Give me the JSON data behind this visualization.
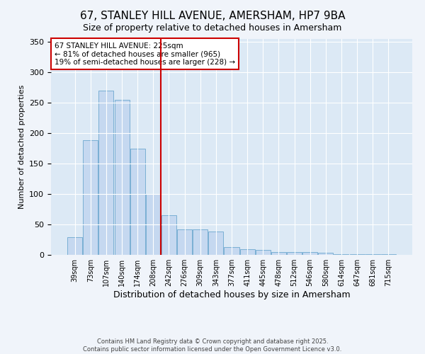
{
  "title": "67, STANLEY HILL AVENUE, AMERSHAM, HP7 9BA",
  "subtitle": "Size of property relative to detached houses in Amersham",
  "xlabel": "Distribution of detached houses by size in Amersham",
  "ylabel": "Number of detached properties",
  "bar_labels": [
    "39sqm",
    "73sqm",
    "107sqm",
    "140sqm",
    "174sqm",
    "208sqm",
    "242sqm",
    "276sqm",
    "309sqm",
    "343sqm",
    "377sqm",
    "411sqm",
    "445sqm",
    "478sqm",
    "512sqm",
    "546sqm",
    "580sqm",
    "614sqm",
    "647sqm",
    "681sqm",
    "715sqm"
  ],
  "bar_values": [
    29,
    188,
    270,
    255,
    175,
    100,
    65,
    42,
    42,
    38,
    13,
    9,
    8,
    5,
    5,
    5,
    4,
    1,
    1,
    1,
    1
  ],
  "bar_color": "#c5d8f0",
  "bar_edge_color": "#7aafd4",
  "background_color": "#dce9f5",
  "vline_x": 6.0,
  "vline_color": "#cc0000",
  "annotation_line1": "67 STANLEY HILL AVENUE: 225sqm",
  "annotation_line2": "← 81% of detached houses are smaller (965)",
  "annotation_line3": "19% of semi-detached houses are larger (228) →",
  "annotation_box_color": "#ffffff",
  "annotation_box_edge": "#cc0000",
  "ylim": [
    0,
    355
  ],
  "yticks": [
    0,
    50,
    100,
    150,
    200,
    250,
    300,
    350
  ],
  "footer1": "Contains HM Land Registry data © Crown copyright and database right 2025.",
  "footer2": "Contains public sector information licensed under the Open Government Licence v3.0.",
  "title_fontsize": 11,
  "tick_fontsize": 7,
  "ylabel_fontsize": 8,
  "xlabel_fontsize": 9
}
